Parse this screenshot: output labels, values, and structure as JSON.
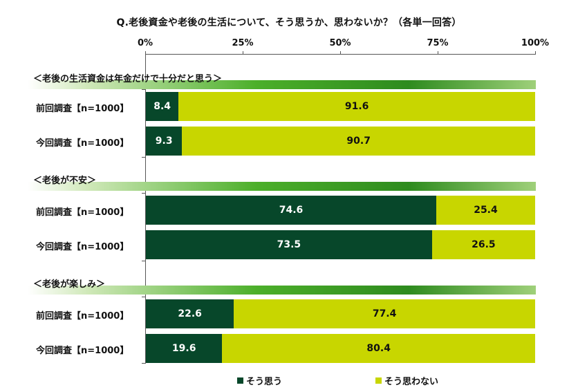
{
  "title": "Q.老後資金や老後の生活について、そう思うか、思わないか？（各単一回答）",
  "chart_data": {
    "type": "bar",
    "orientation": "horizontal-stacked-100",
    "ticks": [
      "0%",
      "25%",
      "50%",
      "75%",
      "100%"
    ],
    "xlim": [
      0,
      100
    ],
    "legend": {
      "position": "bottom",
      "items": [
        {
          "name": "そう思う",
          "color": "#07472a"
        },
        {
          "name": "そう思わない",
          "color": "#c8d600"
        }
      ]
    },
    "groups": [
      {
        "label": "＜老後の生活資金は年金だけで十分だと思う＞",
        "rows": [
          {
            "label": "前回調査【n=1000】",
            "agree": 8.4,
            "disagree": 91.6
          },
          {
            "label": "今回調査【n=1000】",
            "agree": 9.3,
            "disagree": 90.7
          }
        ]
      },
      {
        "label": "＜老後が不安＞",
        "rows": [
          {
            "label": "前回調査【n=1000】",
            "agree": 74.6,
            "disagree": 25.4
          },
          {
            "label": "今回調査【n=1000】",
            "agree": 73.5,
            "disagree": 26.5
          }
        ]
      },
      {
        "label": "＜老後が楽しみ＞",
        "rows": [
          {
            "label": "前回調査【n=1000】",
            "agree": 22.6,
            "disagree": 77.4
          },
          {
            "label": "今回調査【n=1000】",
            "agree": 19.6,
            "disagree": 80.4
          }
        ]
      }
    ]
  }
}
